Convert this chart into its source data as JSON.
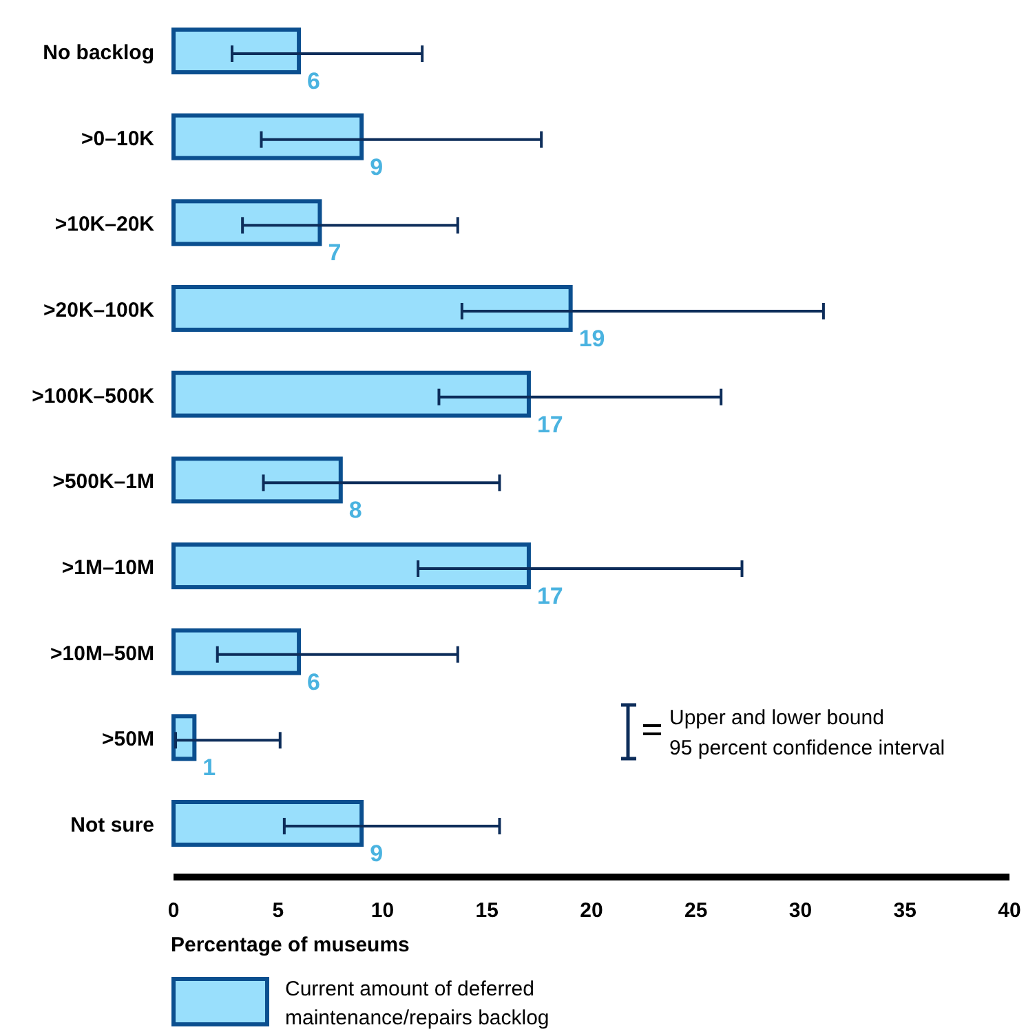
{
  "chart_data": {
    "type": "bar",
    "orientation": "horizontal",
    "categories": [
      "No backlog",
      ">0–10K",
      ">10K–20K",
      ">20K–100K",
      ">100K–500K",
      ">500K–1M",
      ">1M–10M",
      ">10M–50M",
      ">50M",
      "Not sure"
    ],
    "series": [
      {
        "name": "Current amount of deferred maintenance/repairs backlog",
        "color": "#99dffc",
        "values": [
          6,
          9,
          7,
          19,
          17,
          8,
          17,
          6,
          1,
          9
        ],
        "errors": [
          [
            2.8,
            11.9
          ],
          [
            4.2,
            17.6
          ],
          [
            3.3,
            13.6
          ],
          [
            13.8,
            31.1
          ],
          [
            12.7,
            26.2
          ],
          [
            4.3,
            15.6
          ],
          [
            11.7,
            27.2
          ],
          [
            2.1,
            13.6
          ],
          [
            0.1,
            5.1
          ],
          [
            5.3,
            15.6
          ]
        ]
      }
    ],
    "xlim": [
      0,
      40
    ],
    "xticks": [
      0,
      5,
      10,
      15,
      20,
      25,
      30,
      35,
      40
    ],
    "xlabel": "Percentage of museums",
    "data_labels": true,
    "legend": "bottom",
    "grid": false,
    "annotations": [
      "Upper and lower bound\n95 percent confidence interval"
    ]
  }
}
